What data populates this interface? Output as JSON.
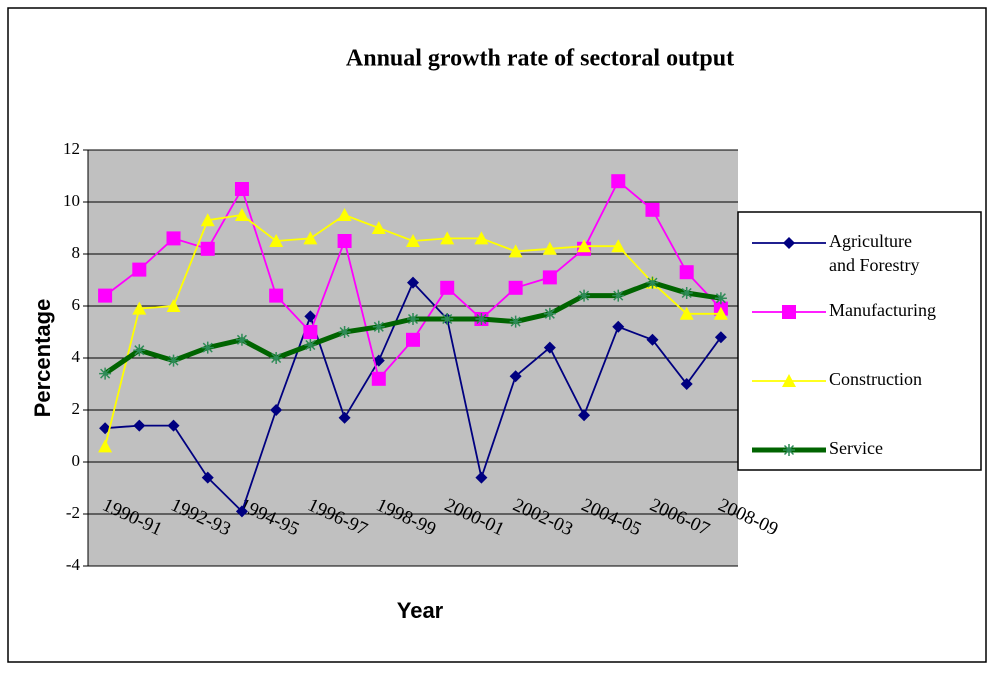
{
  "chart_data": {
    "type": "line",
    "title": "Annual growth rate of sectoral output",
    "x_label": "Year",
    "y_label": "Percentage",
    "categories": [
      "1990-91",
      null,
      "1992-93",
      null,
      "1994-95",
      null,
      "1996-97",
      null,
      "1998-99",
      null,
      "2000-01",
      null,
      "2002-03",
      null,
      "2004-05",
      null,
      "2006-07",
      null,
      "2008-09"
    ],
    "series": [
      {
        "name": "Agriculture and Forestry",
        "color": "#000080",
        "marker": "diamond",
        "values": [
          1.3,
          1.4,
          1.4,
          -0.6,
          -1.9,
          2.0,
          5.6,
          1.7,
          3.9,
          6.9,
          5.5,
          -0.6,
          3.3,
          4.4,
          1.8,
          5.2,
          4.7,
          3.0,
          4.8
        ]
      },
      {
        "name": "Manufacturing",
        "color": "#ff00ff",
        "marker": "square",
        "values": [
          6.4,
          7.4,
          8.6,
          8.2,
          10.5,
          6.4,
          5.0,
          8.5,
          3.2,
          4.7,
          6.7,
          5.5,
          6.7,
          7.1,
          8.2,
          10.8,
          9.7,
          7.3,
          5.9
        ]
      },
      {
        "name": "Construction",
        "color": "#ffff00",
        "marker": "triangle",
        "values": [
          0.6,
          5.9,
          6.0,
          9.3,
          9.5,
          8.5,
          8.6,
          9.5,
          9.0,
          8.5,
          8.6,
          8.6,
          8.1,
          8.2,
          8.3,
          8.3,
          6.9,
          5.7,
          5.7
        ]
      },
      {
        "name": "Service",
        "color": "#006400",
        "marker": "star",
        "values": [
          3.4,
          4.3,
          3.9,
          4.4,
          4.7,
          4.0,
          4.5,
          5.0,
          5.2,
          5.5,
          5.5,
          5.5,
          5.4,
          5.7,
          6.4,
          6.4,
          6.9,
          6.5,
          6.3
        ]
      }
    ],
    "ylim": [
      -4,
      12
    ],
    "yticks": [
      -4,
      -2,
      0,
      2,
      4,
      6,
      8,
      10,
      12
    ],
    "grid": true,
    "legend": "right"
  }
}
